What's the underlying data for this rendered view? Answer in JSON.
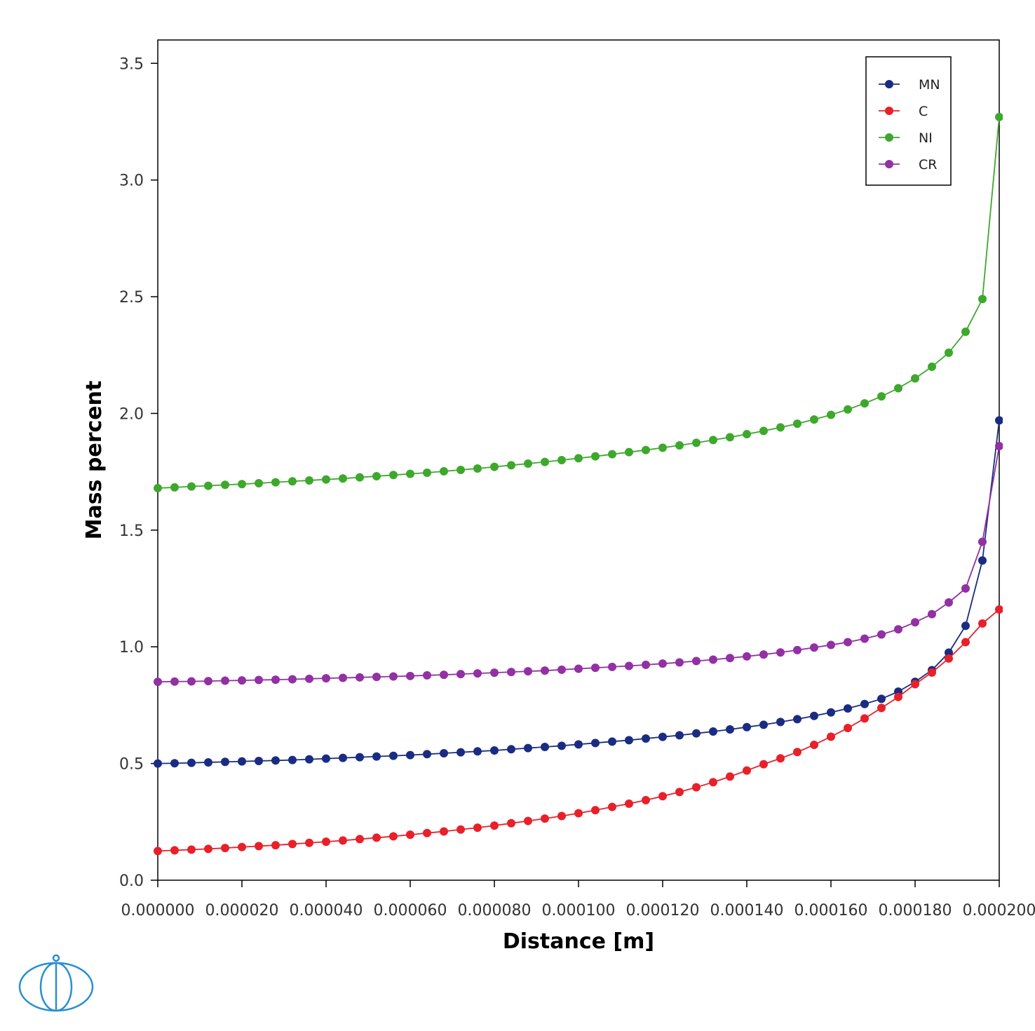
{
  "chart_data": {
    "type": "line",
    "xlabel": "Distance [m]",
    "ylabel": "Mass percent",
    "xlim": [
      0,
      0.0002
    ],
    "ylim": [
      0,
      3.6
    ],
    "x_tick_values": [
      0,
      2e-05,
      4e-05,
      6e-05,
      8e-05,
      0.0001,
      0.00012,
      0.00014,
      0.00016,
      0.00018,
      0.0002
    ],
    "x_tick_labels": [
      "0.000000",
      "0.000020",
      "0.000040",
      "0.000060",
      "0.000080",
      "0.000100",
      "0.000120",
      "0.000140",
      "0.000160",
      "0.000180",
      "0.000200"
    ],
    "y_tick_values": [
      0,
      0.5,
      1,
      1.5,
      2,
      2.5,
      3,
      3.5
    ],
    "y_tick_labels": [
      "0.0",
      "0.5",
      "1.0",
      "1.5",
      "2.0",
      "2.5",
      "3.0",
      "3.5"
    ],
    "grid": false,
    "legend_position": "top-right",
    "markers": true,
    "x": [
      0,
      4e-06,
      8e-06,
      1.2e-05,
      1.6e-05,
      2e-05,
      2.4e-05,
      2.8e-05,
      3.2e-05,
      3.6e-05,
      4e-05,
      4.4e-05,
      4.8e-05,
      5.2e-05,
      5.6e-05,
      6e-05,
      6.4e-05,
      6.8e-05,
      7.2e-05,
      7.6e-05,
      8e-05,
      8.4e-05,
      8.8e-05,
      9.2e-05,
      9.6e-05,
      0.0001,
      0.000104,
      0.000108,
      0.000112,
      0.000116,
      0.00012,
      0.000124,
      0.000128,
      0.000132,
      0.000136,
      0.00014,
      0.000144,
      0.000148,
      0.000152,
      0.000156,
      0.00016,
      0.000164,
      0.000168,
      0.000172,
      0.000176,
      0.00018,
      0.000184,
      0.000188,
      0.000192,
      0.000196,
      0.0002
    ],
    "series": [
      {
        "name": "MN",
        "color": "#1a2c82",
        "values": [
          0.5,
          0.501,
          0.503,
          0.505,
          0.507,
          0.509,
          0.511,
          0.513,
          0.515,
          0.518,
          0.521,
          0.524,
          0.527,
          0.53,
          0.533,
          0.536,
          0.54,
          0.544,
          0.548,
          0.552,
          0.556,
          0.561,
          0.566,
          0.571,
          0.576,
          0.582,
          0.588,
          0.594,
          0.6,
          0.607,
          0.614,
          0.621,
          0.629,
          0.637,
          0.646,
          0.656,
          0.666,
          0.678,
          0.69,
          0.704,
          0.719,
          0.736,
          0.755,
          0.777,
          0.808,
          0.85,
          0.9,
          0.975,
          1.09,
          1.37,
          1.97
        ]
      },
      {
        "name": "C",
        "color": "#e8202a",
        "values": [
          0.125,
          0.128,
          0.131,
          0.134,
          0.138,
          0.142,
          0.146,
          0.15,
          0.155,
          0.16,
          0.165,
          0.17,
          0.176,
          0.182,
          0.188,
          0.195,
          0.202,
          0.209,
          0.217,
          0.225,
          0.234,
          0.244,
          0.254,
          0.264,
          0.275,
          0.287,
          0.3,
          0.314,
          0.328,
          0.343,
          0.36,
          0.378,
          0.398,
          0.42,
          0.444,
          0.47,
          0.497,
          0.522,
          0.549,
          0.58,
          0.615,
          0.652,
          0.693,
          0.738,
          0.785,
          0.84,
          0.89,
          0.95,
          1.02,
          1.1,
          1.16
        ]
      },
      {
        "name": "NI",
        "color": "#3ea82c",
        "values": [
          1.68,
          1.683,
          1.687,
          1.69,
          1.694,
          1.697,
          1.701,
          1.705,
          1.709,
          1.713,
          1.717,
          1.721,
          1.726,
          1.731,
          1.736,
          1.741,
          1.746,
          1.752,
          1.758,
          1.764,
          1.771,
          1.778,
          1.785,
          1.792,
          1.8,
          1.808,
          1.816,
          1.825,
          1.834,
          1.843,
          1.853,
          1.863,
          1.874,
          1.886,
          1.898,
          1.911,
          1.925,
          1.94,
          1.956,
          1.974,
          1.994,
          2.017,
          2.043,
          2.073,
          2.108,
          2.15,
          2.2,
          2.26,
          2.35,
          2.49,
          3.27
        ]
      },
      {
        "name": "CR",
        "color": "#9230a4",
        "values": [
          0.85,
          0.851,
          0.852,
          0.853,
          0.855,
          0.856,
          0.858,
          0.859,
          0.861,
          0.863,
          0.865,
          0.867,
          0.869,
          0.871,
          0.873,
          0.875,
          0.878,
          0.88,
          0.883,
          0.886,
          0.889,
          0.892,
          0.895,
          0.898,
          0.902,
          0.906,
          0.91,
          0.914,
          0.918,
          0.923,
          0.928,
          0.933,
          0.939,
          0.945,
          0.952,
          0.959,
          0.967,
          0.976,
          0.986,
          0.997,
          1.008,
          1.02,
          1.035,
          1.053,
          1.075,
          1.105,
          1.14,
          1.19,
          1.25,
          1.45,
          1.86
        ]
      }
    ]
  }
}
